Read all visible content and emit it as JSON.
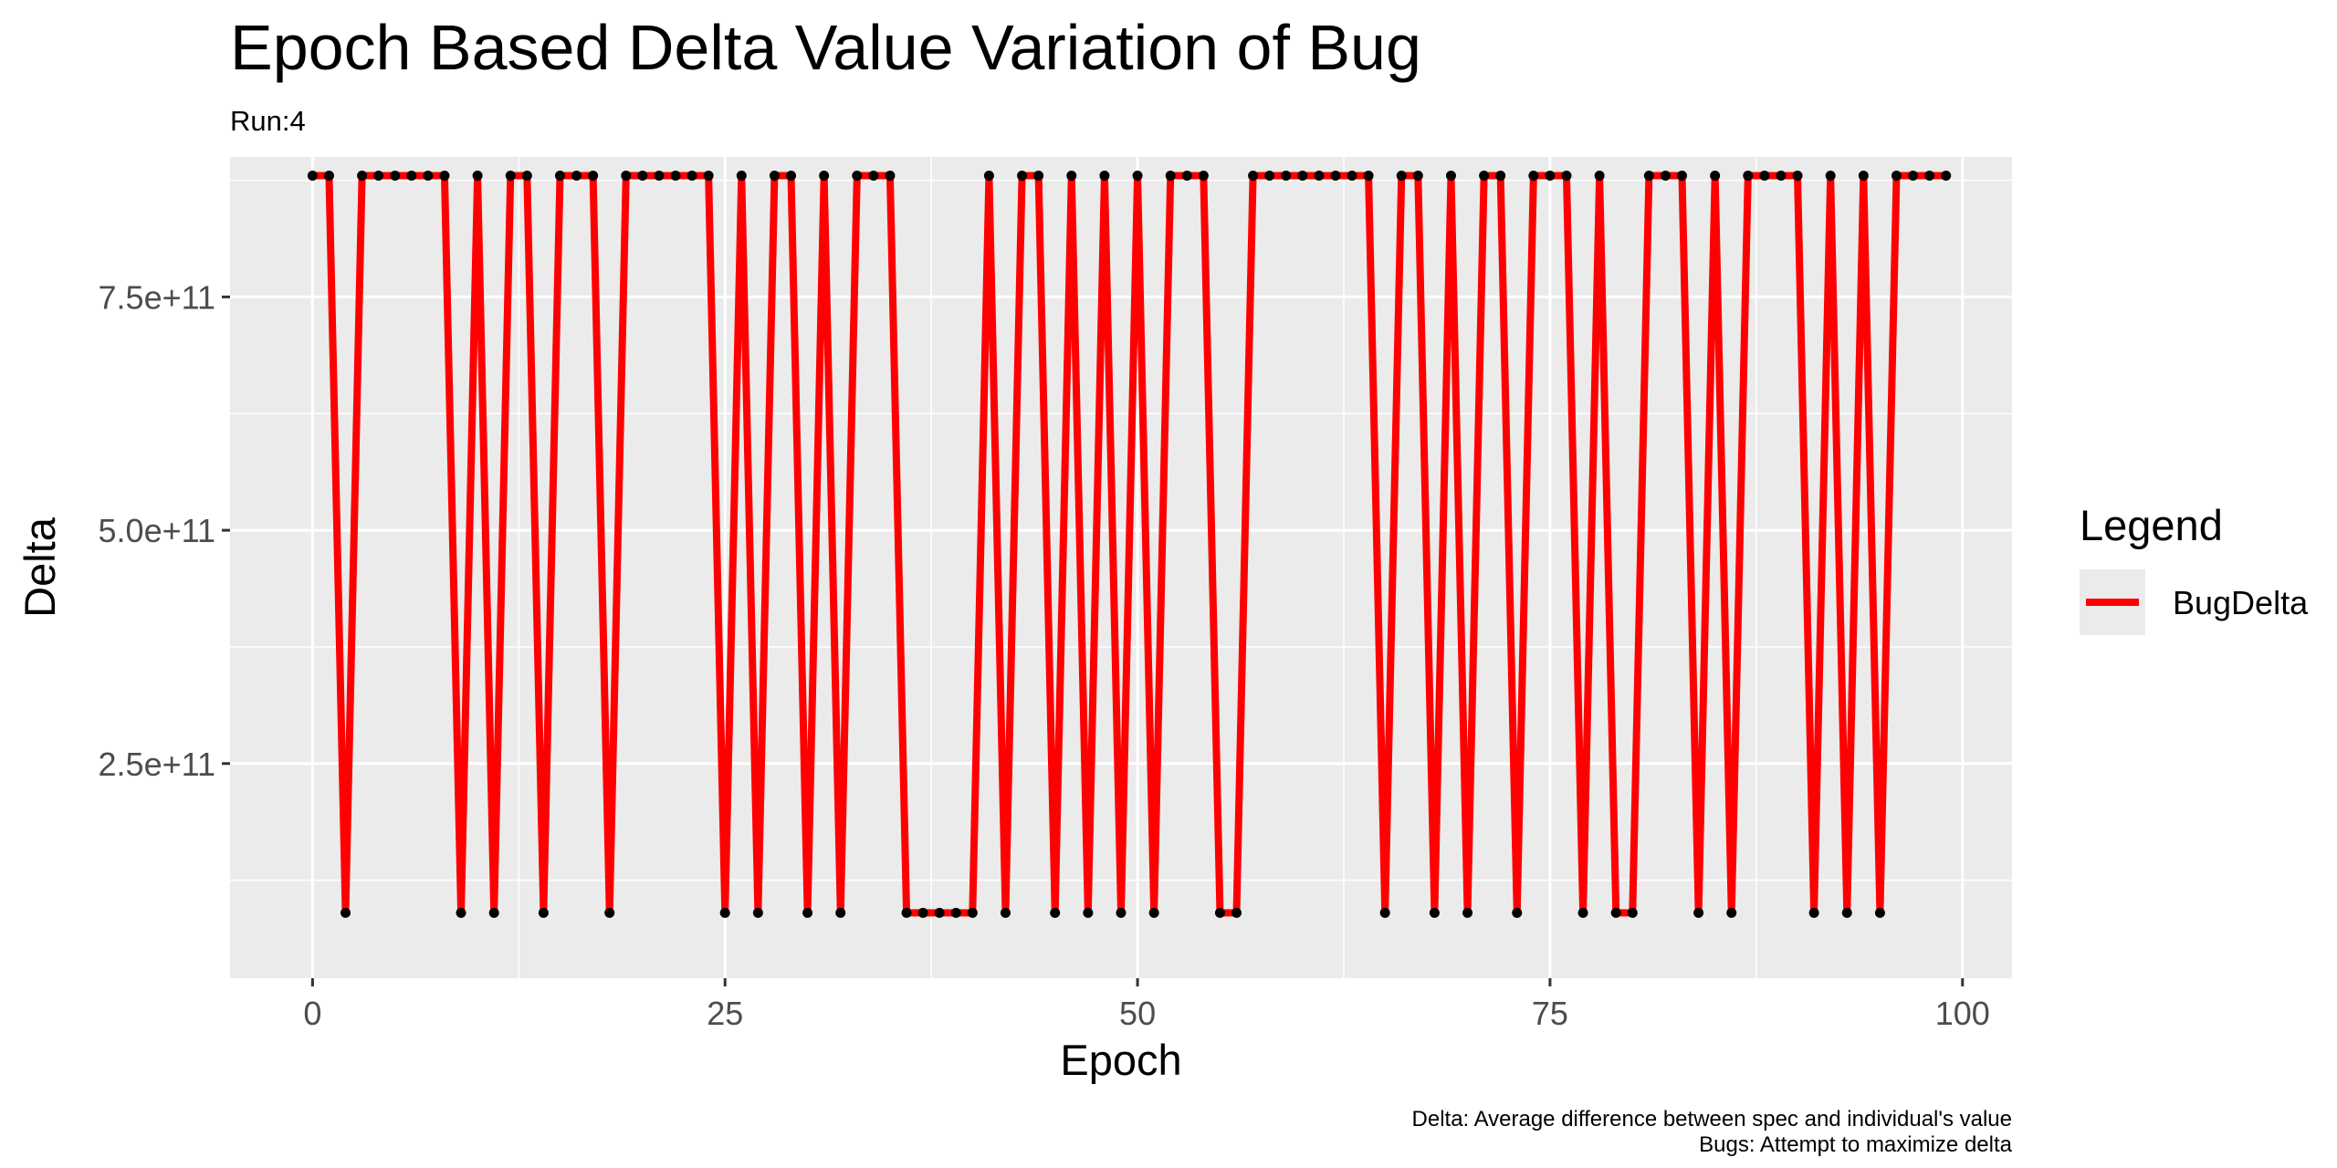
{
  "chart_data": {
    "type": "line",
    "title": "Epoch Based Delta Value Variation of Bug",
    "subtitle": "Run:4",
    "xlabel": "Epoch",
    "ylabel": "Delta",
    "caption_lines": [
      "Delta: Average difference between spec and individual's value",
      "Bugs: Attempt to maximize delta"
    ],
    "x_ticks": [
      0,
      25,
      50,
      75,
      100
    ],
    "x_tick_labels": [
      "0",
      "25",
      "50",
      "75",
      "100"
    ],
    "y_ticks": [
      250000000000,
      500000000000,
      750000000000
    ],
    "y_tick_labels": [
      "2.5e+11",
      "5.0e+11",
      "7.5e+11"
    ],
    "xlim": [
      -5,
      103
    ],
    "ylim": [
      20000000000,
      900000000000
    ],
    "grid": true,
    "legend_title": "Legend",
    "legend_position": "right",
    "series": [
      {
        "name": "BugDelta",
        "color": "#ff0000",
        "point_color": "#000000",
        "high": 880000000000,
        "low": 90000000000,
        "x": [
          0,
          1,
          2,
          3,
          4,
          5,
          6,
          7,
          8,
          9,
          10,
          11,
          12,
          13,
          14,
          15,
          16,
          17,
          18,
          19,
          20,
          21,
          22,
          23,
          24,
          25,
          26,
          27,
          28,
          29,
          30,
          31,
          32,
          33,
          34,
          35,
          36,
          37,
          38,
          39,
          40,
          41,
          42,
          43,
          44,
          45,
          46,
          47,
          48,
          49,
          50,
          51,
          52,
          53,
          54,
          55,
          56,
          57,
          58,
          59,
          60,
          61,
          62,
          63,
          64,
          65,
          66,
          67,
          68,
          69,
          70,
          71,
          72,
          73,
          74,
          75,
          76,
          77,
          78,
          79,
          80,
          81,
          82,
          83,
          84,
          85,
          86,
          87,
          88,
          89,
          90,
          91,
          92,
          93,
          94,
          95,
          96,
          97,
          98,
          99
        ],
        "values": [
          880000000000,
          880000000000,
          90000000000,
          880000000000,
          880000000000,
          880000000000,
          880000000000,
          880000000000,
          880000000000,
          90000000000,
          880000000000,
          90000000000,
          880000000000,
          880000000000,
          90000000000,
          880000000000,
          880000000000,
          880000000000,
          90000000000,
          880000000000,
          880000000000,
          880000000000,
          880000000000,
          880000000000,
          880000000000,
          90000000000,
          880000000000,
          90000000000,
          880000000000,
          880000000000,
          90000000000,
          880000000000,
          90000000000,
          880000000000,
          880000000000,
          880000000000,
          90000000000,
          90000000000,
          90000000000,
          90000000000,
          90000000000,
          880000000000,
          90000000000,
          880000000000,
          880000000000,
          90000000000,
          880000000000,
          90000000000,
          880000000000,
          90000000000,
          880000000000,
          90000000000,
          880000000000,
          880000000000,
          880000000000,
          90000000000,
          90000000000,
          880000000000,
          880000000000,
          880000000000,
          880000000000,
          880000000000,
          880000000000,
          880000000000,
          880000000000,
          90000000000,
          880000000000,
          880000000000,
          90000000000,
          880000000000,
          90000000000,
          880000000000,
          880000000000,
          90000000000,
          880000000000,
          880000000000,
          880000000000,
          90000000000,
          880000000000,
          90000000000,
          90000000000,
          880000000000,
          880000000000,
          880000000000,
          90000000000,
          880000000000,
          90000000000,
          880000000000,
          880000000000,
          880000000000,
          880000000000,
          90000000000,
          880000000000,
          90000000000,
          880000000000,
          90000000000,
          880000000000,
          880000000000,
          880000000000,
          880000000000
        ]
      }
    ]
  }
}
